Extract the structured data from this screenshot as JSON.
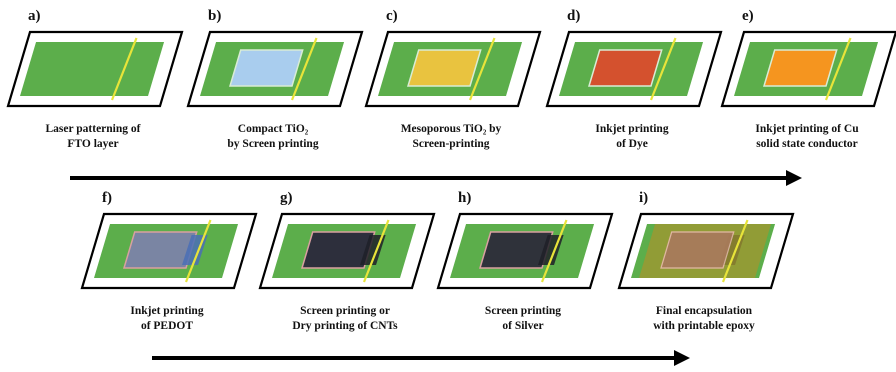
{
  "colors": {
    "substrate": "#5cae4b",
    "etch_line": "#e8e43a",
    "compact_tio2": "#a9cdee",
    "mesoporous_tio2": "#e9c33f",
    "dye": "#d4512e",
    "cu_conductor": "#f5951f",
    "pedot": "#7a85a3",
    "cnt": "#2d2f3c",
    "silver": "#2f323a",
    "epoxy": "#a3962f",
    "arrow": "#000000"
  },
  "steps": [
    {
      "id": "a",
      "letter": "a)",
      "caption": [
        "Laser patterning of",
        "FTO layer"
      ]
    },
    {
      "id": "b",
      "letter": "b)",
      "caption": [
        "Compact TiO₂",
        "by Screen printing"
      ]
    },
    {
      "id": "c",
      "letter": "c)",
      "caption": [
        "Mesoporous TiO₂ by",
        "Screen-printing"
      ]
    },
    {
      "id": "d",
      "letter": "d)",
      "caption": [
        "Inkjet printing",
        "of Dye"
      ]
    },
    {
      "id": "e",
      "letter": "e)",
      "caption": [
        "Inkjet printing of Cu",
        "solid state conductor"
      ]
    },
    {
      "id": "f",
      "letter": "f)",
      "caption": [
        "Inkjet printing",
        "of PEDOT"
      ]
    },
    {
      "id": "g",
      "letter": "g)",
      "caption": [
        "Screen printing or",
        "Dry printing of CNTs"
      ]
    },
    {
      "id": "h",
      "letter": "h)",
      "caption": [
        "Screen printing",
        "of Silver"
      ]
    },
    {
      "id": "i",
      "letter": "i)",
      "caption": [
        "Final encapsulation",
        "with printable epoxy"
      ]
    }
  ]
}
